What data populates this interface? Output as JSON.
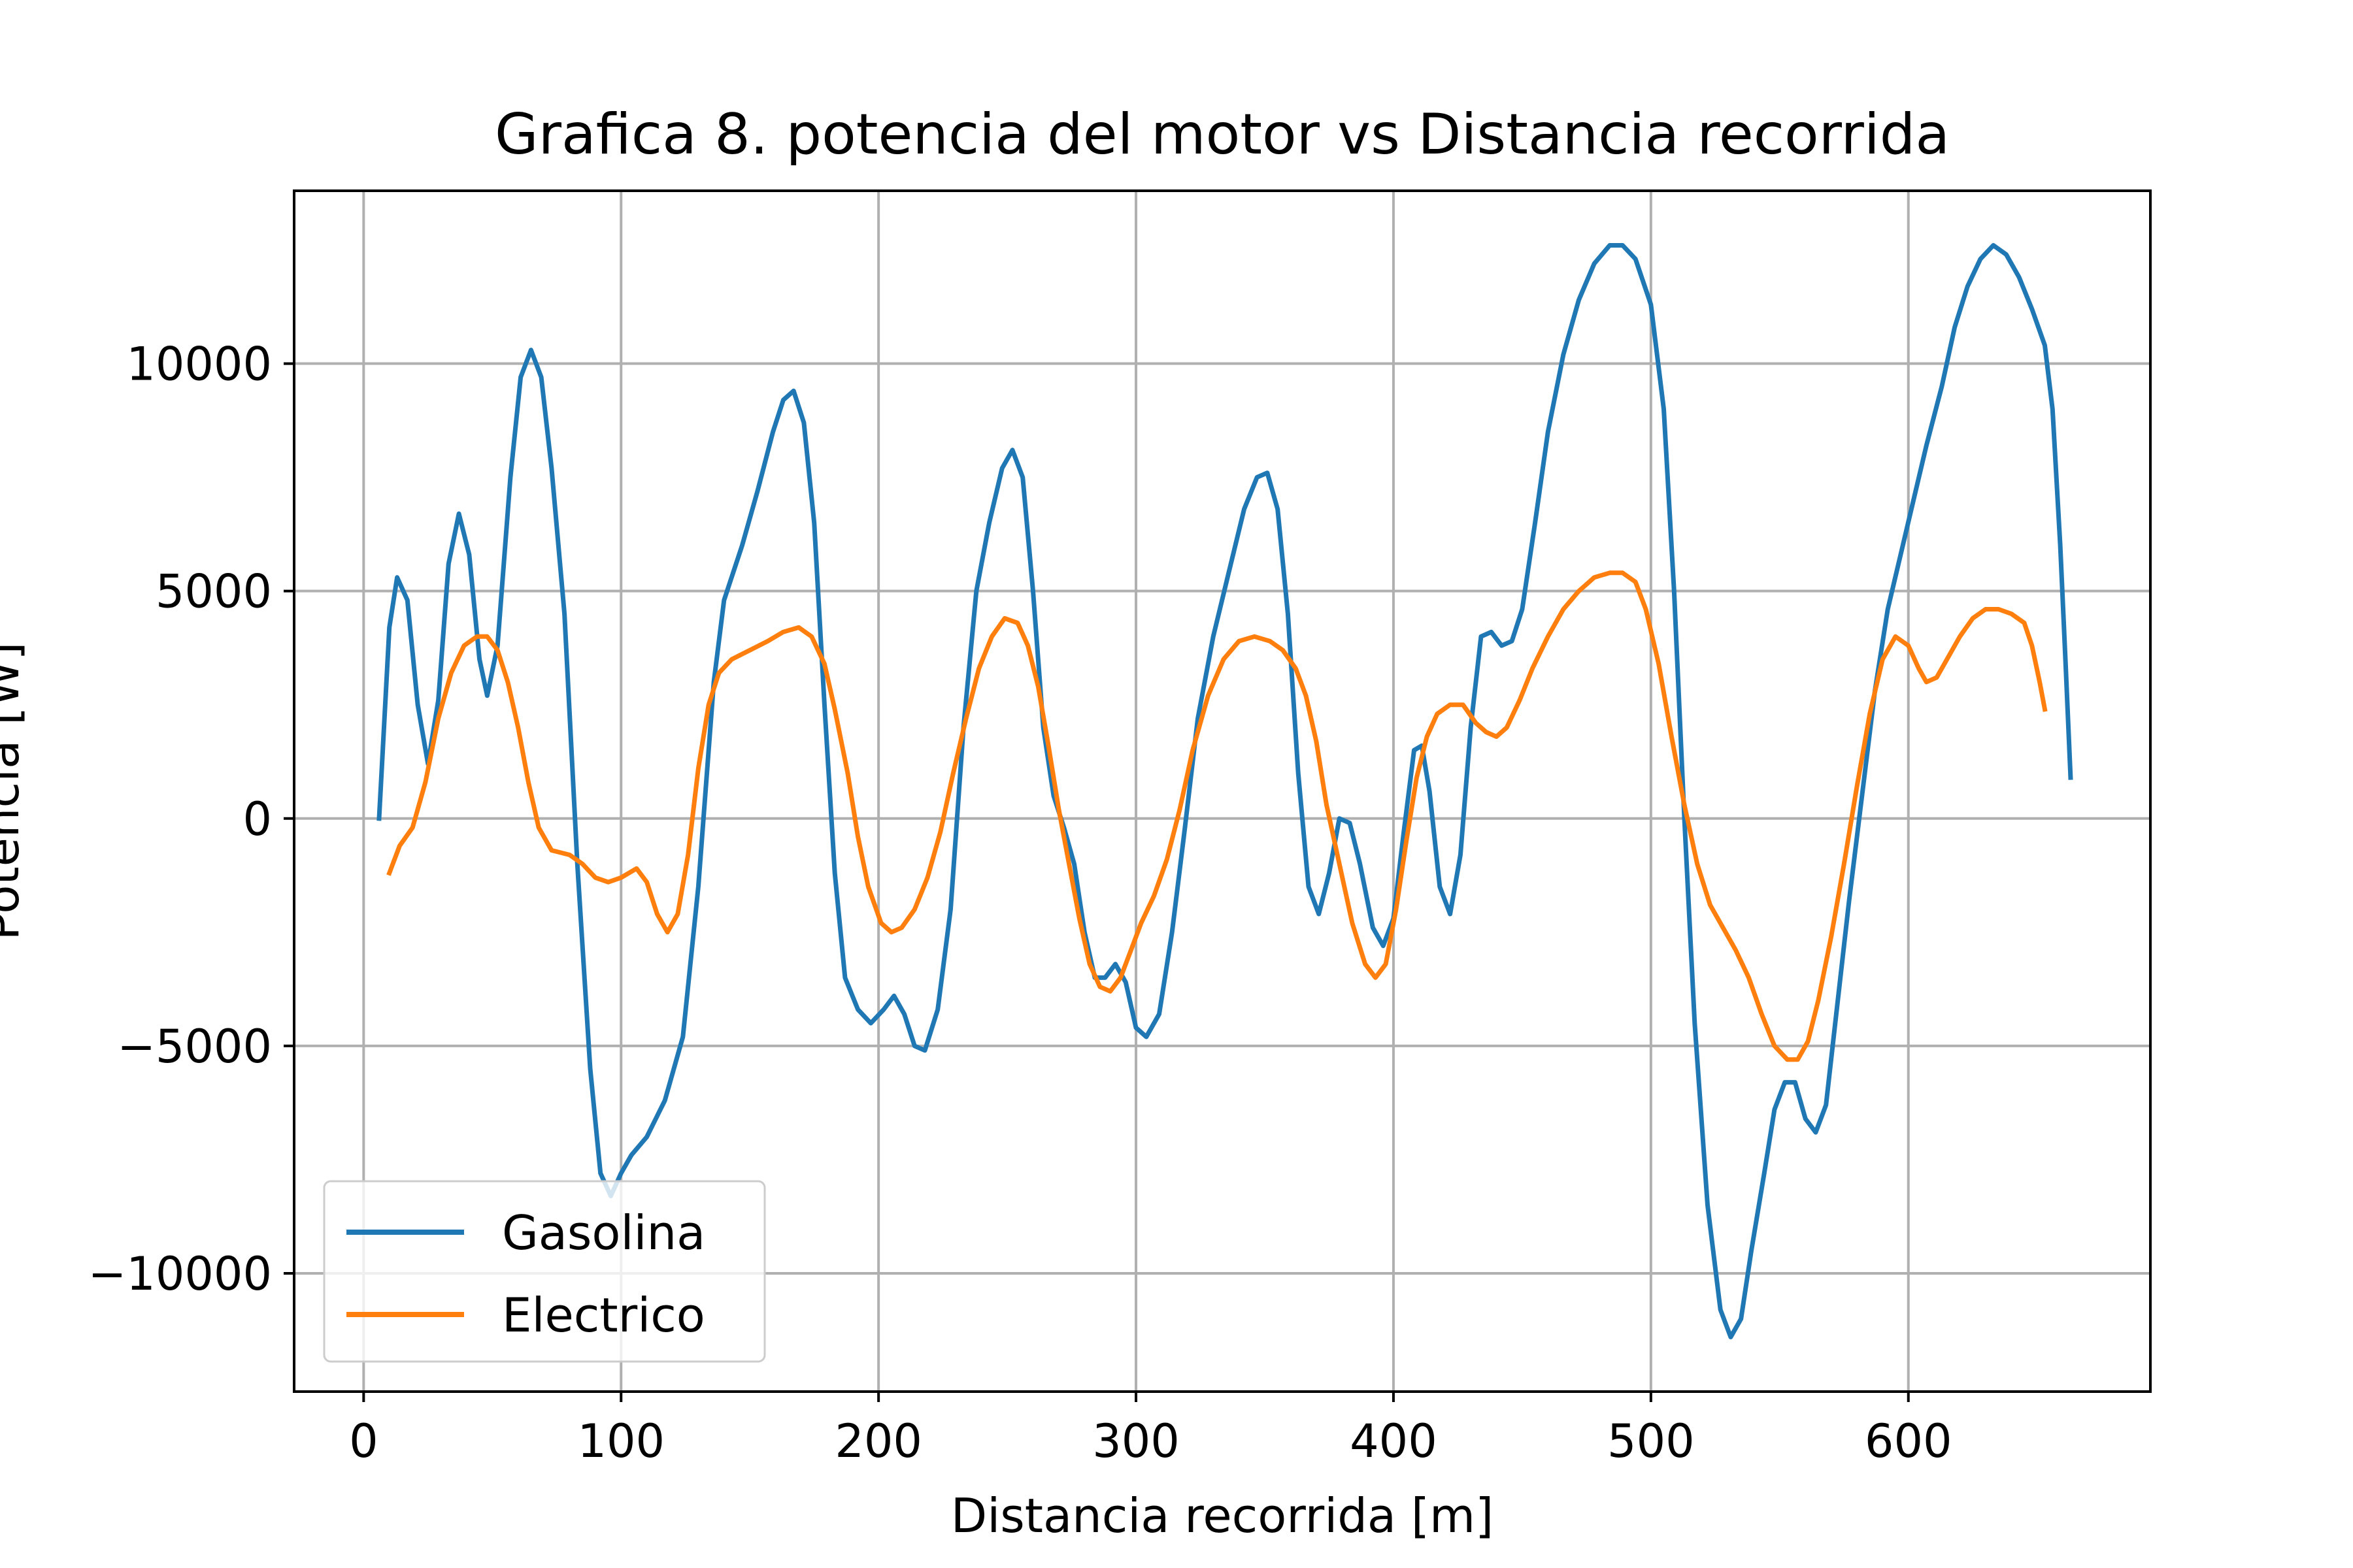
{
  "chart_data": {
    "type": "line",
    "title": "Grafica 8. potencia del motor vs Distancia recorrida",
    "xlabel": "Distancia recorrida [m]",
    "ylabel": "Potencia [W]",
    "xlim": [
      -27,
      694
    ],
    "ylim": [
      -12600,
      13800
    ],
    "xticks": [
      0,
      100,
      200,
      300,
      400,
      500,
      600
    ],
    "yticks": [
      -10000,
      -5000,
      0,
      5000,
      10000
    ],
    "xtick_labels": [
      "0",
      "100",
      "200",
      "300",
      "400",
      "500",
      "600"
    ],
    "ytick_labels": [
      "−10000",
      "−5000",
      "0",
      "5000",
      "10000"
    ],
    "grid": true,
    "legend_position": "lower-left",
    "series": [
      {
        "name": "Gasolina",
        "color": "#1f77b4",
        "points": [
          [
            6,
            0
          ],
          [
            10,
            4200
          ],
          [
            13,
            5300
          ],
          [
            17,
            4800
          ],
          [
            21,
            2500
          ],
          [
            25,
            1200
          ],
          [
            29,
            2600
          ],
          [
            33,
            5600
          ],
          [
            37,
            6700
          ],
          [
            41,
            5800
          ],
          [
            45,
            3500
          ],
          [
            48,
            2700
          ],
          [
            52,
            3800
          ],
          [
            57,
            7500
          ],
          [
            61,
            9700
          ],
          [
            65,
            10300
          ],
          [
            69,
            9700
          ],
          [
            73,
            7700
          ],
          [
            78,
            4500
          ],
          [
            83,
            -1000
          ],
          [
            88,
            -5500
          ],
          [
            92,
            -7800
          ],
          [
            96,
            -8300
          ],
          [
            100,
            -7800
          ],
          [
            104,
            -7400
          ],
          [
            110,
            -7000
          ],
          [
            117,
            -6200
          ],
          [
            124,
            -4800
          ],
          [
            130,
            -1500
          ],
          [
            136,
            3000
          ],
          [
            140,
            4800
          ],
          [
            147,
            6000
          ],
          [
            153,
            7200
          ],
          [
            159,
            8500
          ],
          [
            163,
            9200
          ],
          [
            167,
            9400
          ],
          [
            171,
            8700
          ],
          [
            175,
            6500
          ],
          [
            179,
            2500
          ],
          [
            183,
            -1200
          ],
          [
            187,
            -3500
          ],
          [
            192,
            -4200
          ],
          [
            197,
            -4500
          ],
          [
            202,
            -4200
          ],
          [
            206,
            -3900
          ],
          [
            210,
            -4300
          ],
          [
            214,
            -5000
          ],
          [
            218,
            -5100
          ],
          [
            223,
            -4200
          ],
          [
            228,
            -2000
          ],
          [
            233,
            2000
          ],
          [
            238,
            5000
          ],
          [
            243,
            6500
          ],
          [
            248,
            7700
          ],
          [
            252,
            8100
          ],
          [
            256,
            7500
          ],
          [
            260,
            5000
          ],
          [
            264,
            2000
          ],
          [
            268,
            500
          ],
          [
            272,
            -200
          ],
          [
            276,
            -1000
          ],
          [
            280,
            -2500
          ],
          [
            284,
            -3500
          ],
          [
            288,
            -3500
          ],
          [
            292,
            -3200
          ],
          [
            296,
            -3600
          ],
          [
            300,
            -4600
          ],
          [
            304,
            -4800
          ],
          [
            309,
            -4300
          ],
          [
            314,
            -2500
          ],
          [
            319,
            -200
          ],
          [
            324,
            2200
          ],
          [
            330,
            4000
          ],
          [
            336,
            5400
          ],
          [
            342,
            6800
          ],
          [
            347,
            7500
          ],
          [
            351,
            7600
          ],
          [
            355,
            6800
          ],
          [
            359,
            4500
          ],
          [
            363,
            1000
          ],
          [
            367,
            -1500
          ],
          [
            371,
            -2100
          ],
          [
            375,
            -1200
          ],
          [
            379,
            0
          ],
          [
            383,
            -100
          ],
          [
            387,
            -1000
          ],
          [
            392,
            -2400
          ],
          [
            396,
            -2800
          ],
          [
            400,
            -2200
          ],
          [
            404,
            -300
          ],
          [
            408,
            1500
          ],
          [
            411,
            1600
          ],
          [
            414,
            600
          ],
          [
            418,
            -1500
          ],
          [
            422,
            -2100
          ],
          [
            426,
            -800
          ],
          [
            430,
            2000
          ],
          [
            434,
            4000
          ],
          [
            438,
            4100
          ],
          [
            442,
            3800
          ],
          [
            446,
            3900
          ],
          [
            450,
            4600
          ],
          [
            455,
            6500
          ],
          [
            460,
            8500
          ],
          [
            466,
            10200
          ],
          [
            472,
            11400
          ],
          [
            478,
            12200
          ],
          [
            484,
            12600
          ],
          [
            489,
            12600
          ],
          [
            494,
            12300
          ],
          [
            500,
            11300
          ],
          [
            505,
            9000
          ],
          [
            509,
            5000
          ],
          [
            513,
            0
          ],
          [
            517,
            -4500
          ],
          [
            522,
            -8500
          ],
          [
            527,
            -10800
          ],
          [
            531,
            -11400
          ],
          [
            535,
            -11000
          ],
          [
            539,
            -9500
          ],
          [
            544,
            -7800
          ],
          [
            548,
            -6400
          ],
          [
            552,
            -5800
          ],
          [
            556,
            -5800
          ],
          [
            560,
            -6600
          ],
          [
            564,
            -6900
          ],
          [
            568,
            -6300
          ],
          [
            572,
            -4300
          ],
          [
            577,
            -1800
          ],
          [
            582,
            500
          ],
          [
            587,
            2800
          ],
          [
            592,
            4600
          ],
          [
            597,
            5800
          ],
          [
            602,
            7000
          ],
          [
            607,
            8200
          ],
          [
            613,
            9500
          ],
          [
            618,
            10800
          ],
          [
            623,
            11700
          ],
          [
            628,
            12300
          ],
          [
            633,
            12600
          ],
          [
            638,
            12400
          ],
          [
            643,
            11900
          ],
          [
            648,
            11200
          ],
          [
            653,
            10400
          ],
          [
            656,
            9000
          ],
          [
            659,
            6000
          ],
          [
            661,
            3500
          ],
          [
            663,
            900
          ]
        ]
      },
      {
        "name": "Electrico",
        "color": "#ff7f0e",
        "points": [
          [
            10,
            -1200
          ],
          [
            14,
            -600
          ],
          [
            19,
            -200
          ],
          [
            24,
            800
          ],
          [
            29,
            2200
          ],
          [
            34,
            3200
          ],
          [
            39,
            3800
          ],
          [
            44,
            4000
          ],
          [
            48,
            4000
          ],
          [
            52,
            3700
          ],
          [
            56,
            3000
          ],
          [
            60,
            2000
          ],
          [
            64,
            800
          ],
          [
            68,
            -200
          ],
          [
            73,
            -700
          ],
          [
            80,
            -800
          ],
          [
            85,
            -1000
          ],
          [
            90,
            -1300
          ],
          [
            95,
            -1400
          ],
          [
            100,
            -1300
          ],
          [
            106,
            -1100
          ],
          [
            110,
            -1400
          ],
          [
            114,
            -2100
          ],
          [
            118,
            -2500
          ],
          [
            122,
            -2100
          ],
          [
            126,
            -800
          ],
          [
            130,
            1100
          ],
          [
            134,
            2500
          ],
          [
            138,
            3200
          ],
          [
            143,
            3500
          ],
          [
            150,
            3700
          ],
          [
            157,
            3900
          ],
          [
            163,
            4100
          ],
          [
            169,
            4200
          ],
          [
            174,
            4000
          ],
          [
            179,
            3400
          ],
          [
            183,
            2400
          ],
          [
            188,
            1000
          ],
          [
            192,
            -400
          ],
          [
            196,
            -1500
          ],
          [
            201,
            -2300
          ],
          [
            205,
            -2500
          ],
          [
            209,
            -2400
          ],
          [
            214,
            -2000
          ],
          [
            219,
            -1300
          ],
          [
            224,
            -300
          ],
          [
            229,
            1000
          ],
          [
            234,
            2200
          ],
          [
            239,
            3300
          ],
          [
            244,
            4000
          ],
          [
            249,
            4400
          ],
          [
            254,
            4300
          ],
          [
            258,
            3800
          ],
          [
            262,
            2900
          ],
          [
            266,
            1600
          ],
          [
            270,
            200
          ],
          [
            274,
            -1000
          ],
          [
            278,
            -2200
          ],
          [
            282,
            -3200
          ],
          [
            286,
            -3700
          ],
          [
            290,
            -3800
          ],
          [
            294,
            -3500
          ],
          [
            298,
            -2900
          ],
          [
            302,
            -2300
          ],
          [
            307,
            -1700
          ],
          [
            312,
            -900
          ],
          [
            317,
            200
          ],
          [
            322,
            1500
          ],
          [
            328,
            2700
          ],
          [
            334,
            3500
          ],
          [
            340,
            3900
          ],
          [
            346,
            4000
          ],
          [
            352,
            3900
          ],
          [
            357,
            3700
          ],
          [
            362,
            3300
          ],
          [
            366,
            2700
          ],
          [
            370,
            1700
          ],
          [
            374,
            300
          ],
          [
            379,
            -1000
          ],
          [
            384,
            -2300
          ],
          [
            389,
            -3200
          ],
          [
            393,
            -3500
          ],
          [
            397,
            -3200
          ],
          [
            401,
            -2000
          ],
          [
            405,
            -500
          ],
          [
            409,
            900
          ],
          [
            413,
            1800
          ],
          [
            417,
            2300
          ],
          [
            422,
            2500
          ],
          [
            427,
            2500
          ],
          [
            432,
            2100
          ],
          [
            436,
            1900
          ],
          [
            440,
            1800
          ],
          [
            444,
            2000
          ],
          [
            449,
            2600
          ],
          [
            454,
            3300
          ],
          [
            460,
            4000
          ],
          [
            466,
            4600
          ],
          [
            472,
            5000
          ],
          [
            478,
            5300
          ],
          [
            484,
            5400
          ],
          [
            489,
            5400
          ],
          [
            494,
            5200
          ],
          [
            498,
            4600
          ],
          [
            503,
            3400
          ],
          [
            508,
            1800
          ],
          [
            513,
            300
          ],
          [
            518,
            -1000
          ],
          [
            523,
            -1900
          ],
          [
            528,
            -2400
          ],
          [
            533,
            -2900
          ],
          [
            538,
            -3500
          ],
          [
            543,
            -4300
          ],
          [
            548,
            -5000
          ],
          [
            553,
            -5300
          ],
          [
            557,
            -5300
          ],
          [
            561,
            -4900
          ],
          [
            565,
            -4000
          ],
          [
            570,
            -2600
          ],
          [
            575,
            -1000
          ],
          [
            580,
            700
          ],
          [
            585,
            2300
          ],
          [
            590,
            3500
          ],
          [
            595,
            4000
          ],
          [
            600,
            3800
          ],
          [
            604,
            3300
          ],
          [
            607,
            3000
          ],
          [
            611,
            3100
          ],
          [
            615,
            3500
          ],
          [
            620,
            4000
          ],
          [
            625,
            4400
          ],
          [
            630,
            4600
          ],
          [
            635,
            4600
          ],
          [
            640,
            4500
          ],
          [
            645,
            4300
          ],
          [
            648,
            3800
          ],
          [
            651,
            3000
          ],
          [
            653,
            2400
          ]
        ]
      }
    ]
  }
}
